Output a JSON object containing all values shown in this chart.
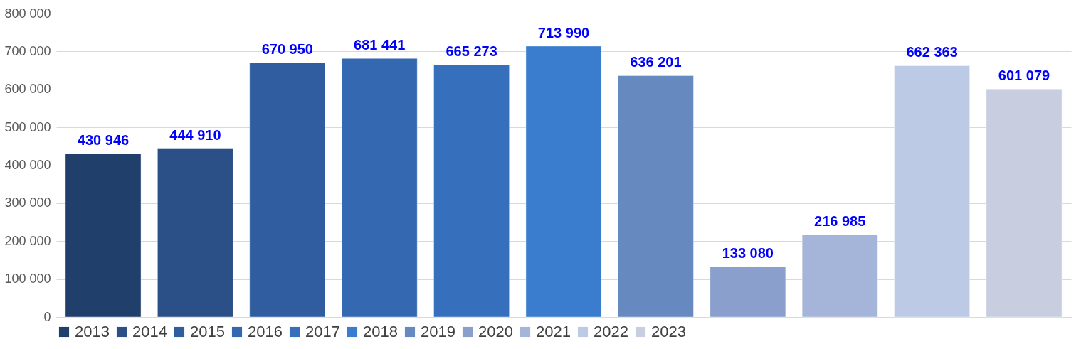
{
  "chart_data": {
    "type": "bar",
    "categories": [
      null
    ],
    "series": [
      {
        "name": "2013",
        "color": "#213f6b",
        "values": [
          430946
        ],
        "value_labels": [
          "430 946"
        ]
      },
      {
        "name": "2014",
        "color": "#2b5088",
        "values": [
          444910
        ],
        "value_labels": [
          "444 910"
        ]
      },
      {
        "name": "2015",
        "color": "#2f5d9f",
        "values": [
          670950
        ],
        "value_labels": [
          "670 950"
        ]
      },
      {
        "name": "2016",
        "color": "#3468b0",
        "values": [
          681441
        ],
        "value_labels": [
          "681 441"
        ]
      },
      {
        "name": "2017",
        "color": "#3670bd",
        "values": [
          665273
        ],
        "value_labels": [
          "665 273"
        ]
      },
      {
        "name": "2018",
        "color": "#3a7ccd",
        "values": [
          713990
        ],
        "value_labels": [
          "713 990"
        ]
      },
      {
        "name": "2019",
        "color": "#6689c0",
        "values": [
          636201
        ],
        "value_labels": [
          "636 201"
        ]
      },
      {
        "name": "2020",
        "color": "#8b9fcc",
        "values": [
          133080
        ],
        "value_labels": [
          "133 080"
        ]
      },
      {
        "name": "2021",
        "color": "#a5b4d9",
        "values": [
          216985
        ],
        "value_labels": [
          "216 985"
        ]
      },
      {
        "name": "2022",
        "color": "#bccae6",
        "values": [
          662363
        ],
        "value_labels": [
          "662 363"
        ]
      },
      {
        "name": "2023",
        "color": "#c8cde0",
        "values": [
          601079
        ],
        "value_labels": [
          "601 079"
        ]
      }
    ],
    "ylim": [
      0,
      800000
    ],
    "yticks": [
      {
        "value": 0,
        "label": "0"
      },
      {
        "value": 100000,
        "label": "100 000"
      },
      {
        "value": 200000,
        "label": "200 000"
      },
      {
        "value": 300000,
        "label": "300 000"
      },
      {
        "value": 400000,
        "label": "400 000"
      },
      {
        "value": 500000,
        "label": "500 000"
      },
      {
        "value": 600000,
        "label": "600 000"
      },
      {
        "value": 700000,
        "label": "700 000"
      },
      {
        "value": 800000,
        "label": "800 000"
      }
    ],
    "grid": "y",
    "legend": "bottom",
    "tick_labels": "y"
  }
}
